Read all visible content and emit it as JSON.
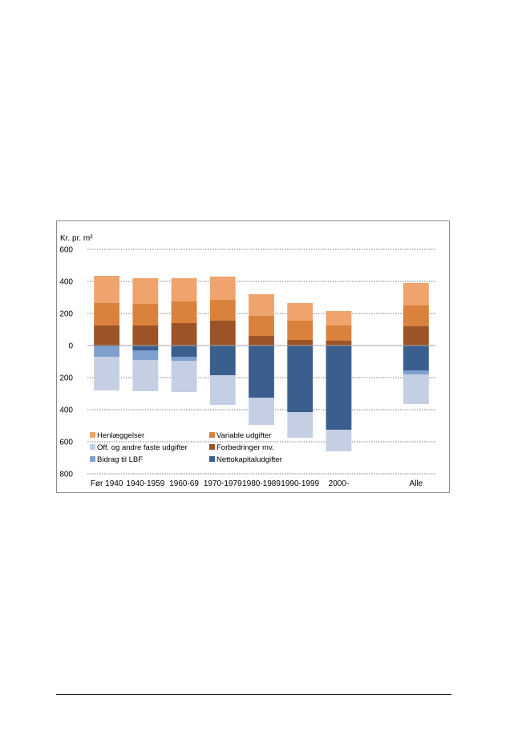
{
  "chart_data": {
    "type": "bar",
    "stacked": true,
    "ylabel": "Kr. pr. m²",
    "ylim": [
      -800,
      600
    ],
    "ytick_values": [
      600,
      400,
      200,
      0,
      -200,
      -400,
      -600,
      -800
    ],
    "ytick_labels": [
      "600",
      "400",
      "200",
      "0",
      "200",
      "400",
      "600",
      "800"
    ],
    "grid": true,
    "legend_position": "bottom-left inside plot",
    "categories": [
      "Før 1940",
      "1940-1959",
      "1960-69",
      "1970-1979",
      "1980-1989",
      "1990-1999",
      "2000-",
      "",
      "Alle"
    ],
    "series": [
      {
        "name": "Forbedringer mv.",
        "color": "#9c5427",
        "side": "positive",
        "values": [
          125,
          125,
          140,
          155,
          60,
          35,
          30,
          null,
          120
        ]
      },
      {
        "name": "Variable udgifter",
        "color": "#d9823e",
        "side": "positive",
        "values": [
          140,
          135,
          135,
          130,
          125,
          120,
          95,
          null,
          130
        ]
      },
      {
        "name": "Henlæggelser",
        "color": "#eea46c",
        "side": "positive",
        "values": [
          170,
          160,
          145,
          145,
          135,
          110,
          90,
          null,
          140
        ]
      },
      {
        "name": "Nettokapitaludgifter",
        "color": "#3a5f8f",
        "side": "negative",
        "values": [
          -5,
          -30,
          -70,
          -185,
          -325,
          -415,
          -525,
          null,
          -155
        ]
      },
      {
        "name": "Bidrag til LBF",
        "color": "#7ea0cf",
        "side": "negative",
        "values": [
          -65,
          -60,
          -25,
          0,
          0,
          0,
          0,
          null,
          -25
        ]
      },
      {
        "name": "Off. og andre faste udgifter",
        "color": "#c4cfe3",
        "side": "negative",
        "values": [
          -210,
          -195,
          -195,
          -185,
          -170,
          -160,
          -135,
          null,
          -185
        ]
      }
    ],
    "legend": [
      {
        "label": "Henlæggelser",
        "color": "#eea46c"
      },
      {
        "label": "Variable udgifter",
        "color": "#d9823e"
      },
      {
        "label": "Off. og andre faste udgifter",
        "color": "#c4cfe3"
      },
      {
        "label": "Forbedringer mv.",
        "color": "#9c5427"
      },
      {
        "label": "Bidrag til LBF",
        "color": "#7ea0cf"
      },
      {
        "label": "Nettokapitaludgifter",
        "color": "#3a5f8f"
      }
    ]
  }
}
